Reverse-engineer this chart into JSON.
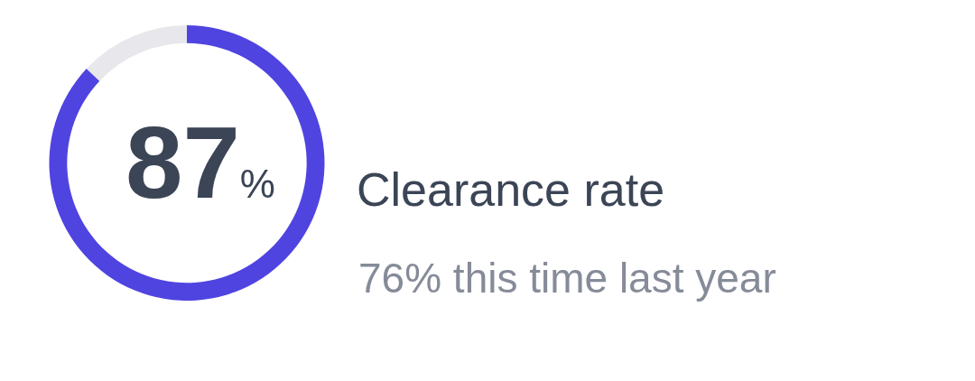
{
  "chart_data": {
    "type": "donut",
    "title": "Clearance rate",
    "subtitle": "76% this time last year",
    "categories": [
      null,
      null
    ],
    "values": [
      87,
      13
    ],
    "colors": [
      "#4f44e0",
      "#e7e7ec"
    ],
    "value_labels": [
      "87%",
      null
    ]
  }
}
